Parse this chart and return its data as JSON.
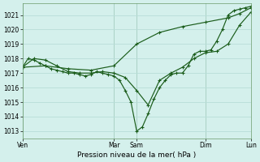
{
  "bg_color": "#d4f0ec",
  "grid_color": "#b8ddd8",
  "line_color": "#1a5c1a",
  "xlabel": "Pression niveau de la mer( hPa )",
  "ylim": [
    1012.5,
    1021.8
  ],
  "yticks": [
    1013,
    1014,
    1015,
    1016,
    1017,
    1018,
    1019,
    1020,
    1021
  ],
  "xlim": [
    0,
    240
  ],
  "day_ticks_x": [
    0,
    96,
    120,
    192,
    240
  ],
  "day_labels": [
    "Ven",
    "Mar",
    "Sam",
    "Dim",
    "Lun"
  ],
  "series": [
    {
      "x": [
        0,
        6,
        12,
        18,
        24,
        30,
        36,
        42,
        48,
        54,
        60,
        66,
        72,
        78,
        84,
        90,
        96,
        102,
        108,
        114,
        120,
        126,
        132,
        138,
        144,
        150,
        156,
        162,
        168,
        174,
        180,
        186,
        192,
        198,
        204,
        210,
        216,
        222,
        228,
        234,
        240
      ],
      "y": [
        1017.4,
        1018.0,
        1017.9,
        1017.7,
        1017.5,
        1017.3,
        1017.2,
        1017.1,
        1017.0,
        1017.0,
        1016.9,
        1016.8,
        1016.9,
        1017.1,
        1017.0,
        1016.9,
        1016.8,
        1016.5,
        1015.8,
        1015.0,
        1013.0,
        1013.3,
        1014.2,
        1015.2,
        1016.0,
        1016.5,
        1016.9,
        1017.0,
        1017.0,
        1017.5,
        1018.3,
        1018.5,
        1018.5,
        1018.6,
        1019.2,
        1020.0,
        1021.0,
        1021.3,
        1021.4,
        1021.5,
        1021.6
      ]
    },
    {
      "x": [
        0,
        12,
        24,
        36,
        48,
        60,
        72,
        84,
        96,
        108,
        120,
        132,
        144,
        156,
        168,
        180,
        192,
        204,
        216,
        228,
        240
      ],
      "y": [
        1017.4,
        1018.0,
        1017.9,
        1017.5,
        1017.1,
        1017.0,
        1017.0,
        1017.1,
        1017.0,
        1016.7,
        1015.8,
        1014.8,
        1016.5,
        1017.0,
        1017.4,
        1018.0,
        1018.4,
        1018.5,
        1019.0,
        1020.3,
        1021.2
      ]
    },
    {
      "x": [
        0,
        24,
        48,
        72,
        96,
        120,
        144,
        168,
        192,
        216,
        228,
        240
      ],
      "y": [
        1017.4,
        1017.5,
        1017.3,
        1017.2,
        1017.5,
        1019.0,
        1019.8,
        1020.2,
        1020.5,
        1020.8,
        1021.1,
        1021.5
      ]
    }
  ]
}
